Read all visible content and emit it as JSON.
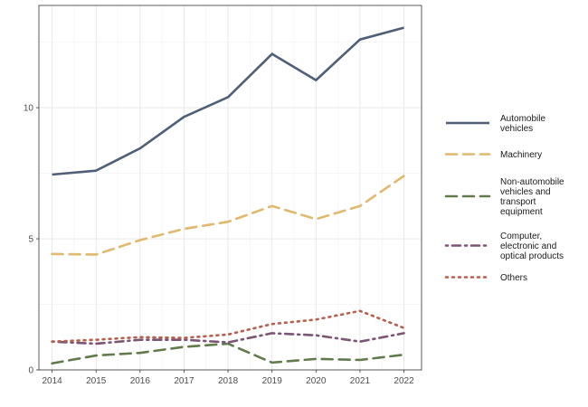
{
  "chart_data": {
    "type": "line",
    "x": [
      2014,
      2015,
      2016,
      2017,
      2018,
      2019,
      2020,
      2021,
      2022
    ],
    "xticks": [
      "2014",
      "2015",
      "2016",
      "2017",
      "2018",
      "2019",
      "2020",
      "2021",
      "2022"
    ],
    "yticks": [
      0,
      5,
      10
    ],
    "ytick_labels": [
      "0",
      "5",
      "10"
    ],
    "ylim": [
      0,
      13.9
    ],
    "xlim": [
      2013.7,
      2022.4
    ],
    "grid": true,
    "legend_position": "right",
    "title": "",
    "xlabel": "",
    "ylabel": "",
    "series": [
      {
        "name": "Automobile vehicles",
        "label_lines": [
          "Automobile",
          "vehicles"
        ],
        "color": "#4e5f78",
        "style": "solid",
        "values": [
          7.45,
          7.6,
          8.45,
          9.65,
          10.4,
          12.05,
          11.05,
          12.6,
          13.05
        ]
      },
      {
        "name": "Machinery",
        "label_lines": [
          "Machinery"
        ],
        "color": "#e0b86e",
        "style": "dashed",
        "values": [
          4.42,
          4.4,
          4.95,
          5.38,
          5.65,
          6.25,
          5.75,
          6.25,
          7.4
        ]
      },
      {
        "name": "Non-automobile vehicles and transport equipment",
        "label_lines": [
          "Non-automobile",
          "vehicles and",
          "transport",
          "equipment"
        ],
        "color": "#617b4c",
        "style": "dashed",
        "values": [
          0.25,
          0.55,
          0.65,
          0.88,
          1.0,
          0.28,
          0.42,
          0.38,
          0.58
        ]
      },
      {
        "name": "Computer, electronic and optical products",
        "label_lines": [
          "Computer,",
          "electronic and",
          "optical products"
        ],
        "color": "#7b5573",
        "style": "dashdot",
        "values": [
          1.08,
          1.0,
          1.15,
          1.15,
          1.05,
          1.4,
          1.32,
          1.08,
          1.4
        ]
      },
      {
        "name": "Others",
        "label_lines": [
          "Others"
        ],
        "color": "#b8604e",
        "style": "dotted",
        "values": [
          1.08,
          1.15,
          1.25,
          1.22,
          1.35,
          1.75,
          1.92,
          2.25,
          1.6
        ]
      }
    ]
  }
}
